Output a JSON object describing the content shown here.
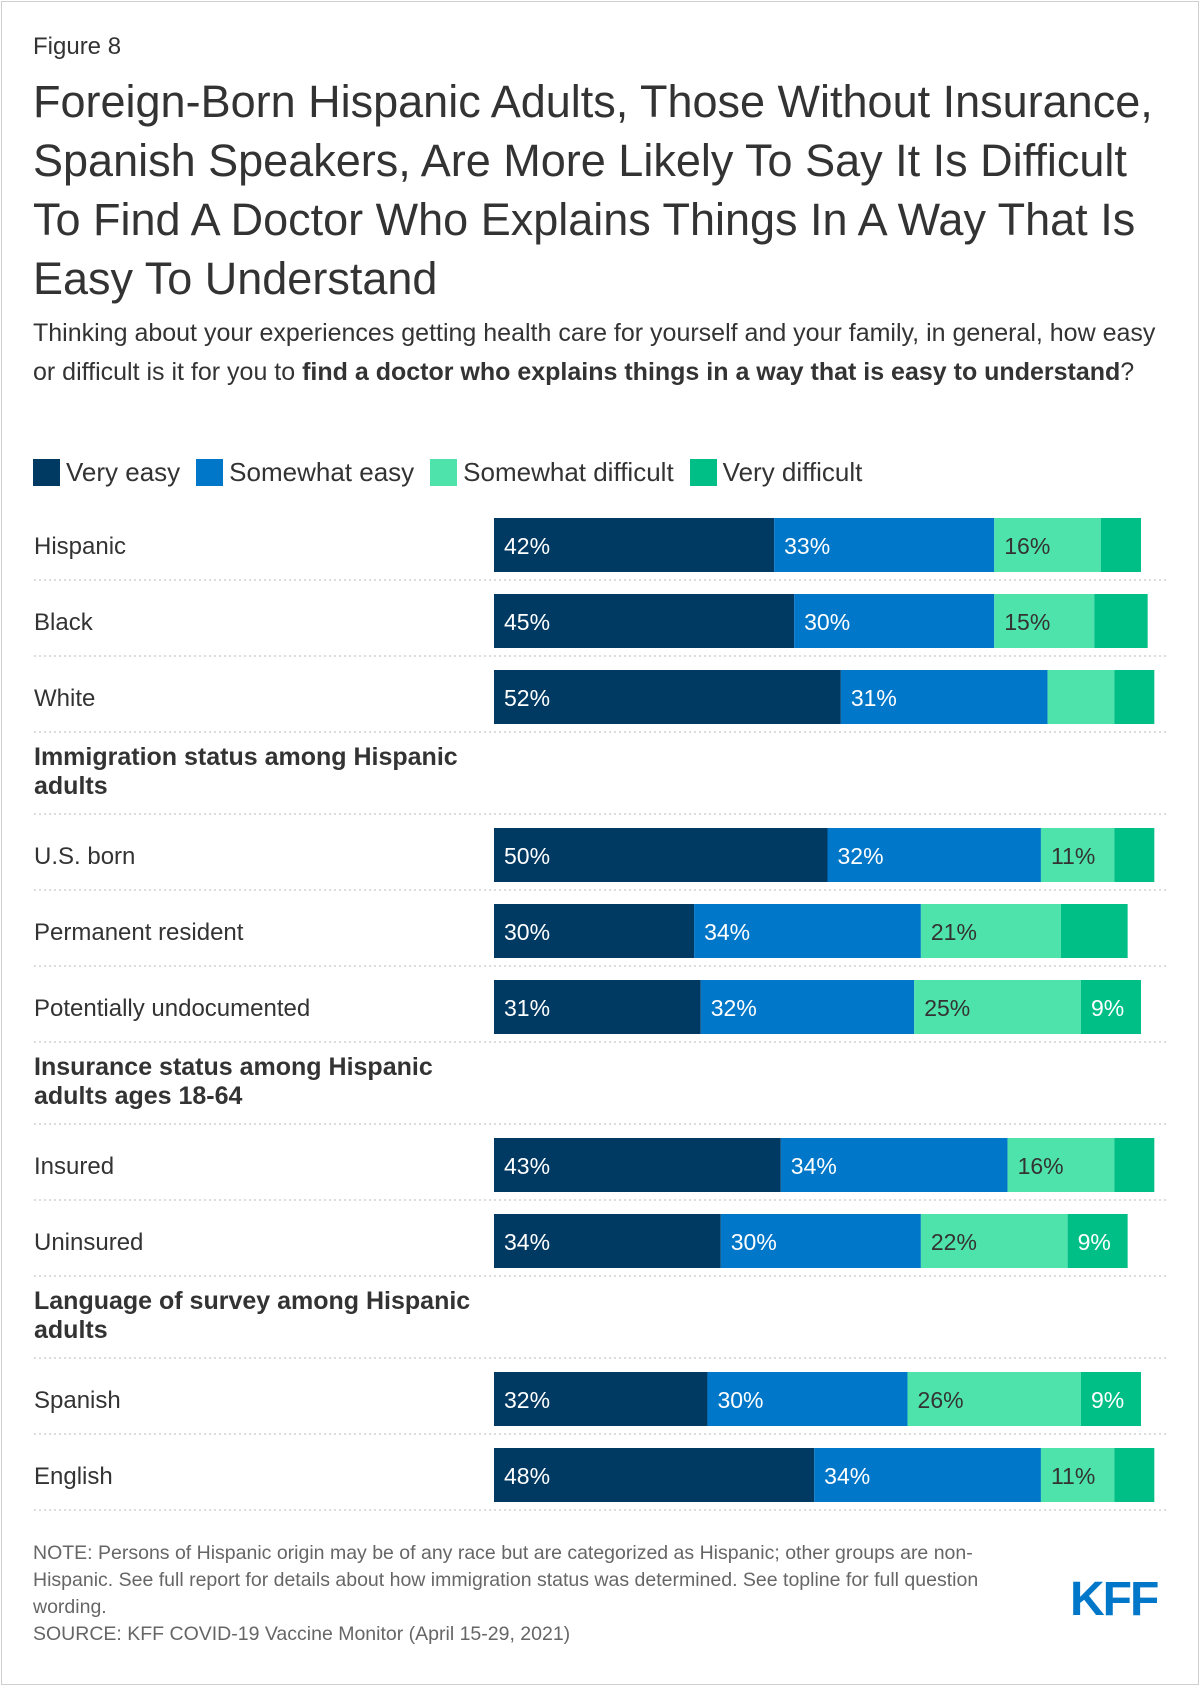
{
  "figure_label": "Figure 8",
  "title": "Foreign-Born Hispanic Adults, Those Without Insurance, Spanish Speakers, Are More Likely To Say It Is Difficult To Find A Doctor Who Explains Things In A Way That Is Easy To Understand",
  "subtitle": {
    "part1": "Thinking about your experiences getting health care for yourself and your family, in general, how easy or difficult is it for you to ",
    "bold": "find a doctor who explains things in a way that is easy to understand",
    "part2": "?"
  },
  "colors": {
    "very_easy": "#003a63",
    "somewhat_easy": "#0077c8",
    "somewhat_difficult": "#4fe3ac",
    "very_difficult": "#00bf86",
    "separator": "#c8c8c8"
  },
  "chart_data": {
    "type": "bar",
    "orientation": "horizontal",
    "stacked": true,
    "xlim": [
      0,
      100
    ],
    "series": [
      {
        "name": "Very easy",
        "color": "#003a63"
      },
      {
        "name": "Somewhat easy",
        "color": "#0077c8"
      },
      {
        "name": "Somewhat difficult",
        "color": "#4fe3ac"
      },
      {
        "name": "Very difficult",
        "color": "#00bf86"
      }
    ],
    "rows": [
      {
        "type": "bar",
        "label": "Hispanic",
        "values": [
          42,
          33,
          16,
          6
        ],
        "labels": [
          "42%",
          "33%",
          "16%",
          ""
        ]
      },
      {
        "type": "bar",
        "label": "Black",
        "values": [
          45,
          30,
          15,
          8
        ],
        "labels": [
          "45%",
          "30%",
          "15%",
          ""
        ]
      },
      {
        "type": "bar",
        "label": "White",
        "values": [
          52,
          31,
          10,
          6
        ],
        "labels": [
          "52%",
          "31%",
          "",
          ""
        ]
      },
      {
        "type": "header",
        "label": "Immigration status among Hispanic adults"
      },
      {
        "type": "bar",
        "label": "U.S. born",
        "values": [
          50,
          32,
          11,
          6
        ],
        "labels": [
          "50%",
          "32%",
          "11%",
          ""
        ]
      },
      {
        "type": "bar",
        "label": "Permanent resident",
        "values": [
          30,
          34,
          21,
          10
        ],
        "labels": [
          "30%",
          "34%",
          "21%",
          ""
        ]
      },
      {
        "type": "bar",
        "label": "Potentially undocumented",
        "values": [
          31,
          32,
          25,
          9
        ],
        "labels": [
          "31%",
          "32%",
          "25%",
          "9%"
        ]
      },
      {
        "type": "header",
        "label": "Insurance status among Hispanic adults ages 18-64"
      },
      {
        "type": "bar",
        "label": "Insured",
        "values": [
          43,
          34,
          16,
          6
        ],
        "labels": [
          "43%",
          "34%",
          "16%",
          ""
        ]
      },
      {
        "type": "bar",
        "label": "Uninsured",
        "values": [
          34,
          30,
          22,
          9
        ],
        "labels": [
          "34%",
          "30%",
          "22%",
          "9%"
        ]
      },
      {
        "type": "header",
        "label": "Language of survey among Hispanic adults"
      },
      {
        "type": "bar",
        "label": "Spanish",
        "values": [
          32,
          30,
          26,
          9
        ],
        "labels": [
          "32%",
          "30%",
          "26%",
          "9%"
        ]
      },
      {
        "type": "bar",
        "label": "English",
        "values": [
          48,
          34,
          11,
          6
        ],
        "labels": [
          "48%",
          "34%",
          "11%",
          ""
        ]
      }
    ]
  },
  "note": "NOTE: Persons of Hispanic origin may be of any race but are categorized as Hispanic; other groups are non-Hispanic. See full report for details about how immigration status was determined. See topline for full question wording.",
  "source": "SOURCE: KFF COVID-19 Vaccine Monitor (April 15-29, 2021)",
  "logo": "KFF"
}
